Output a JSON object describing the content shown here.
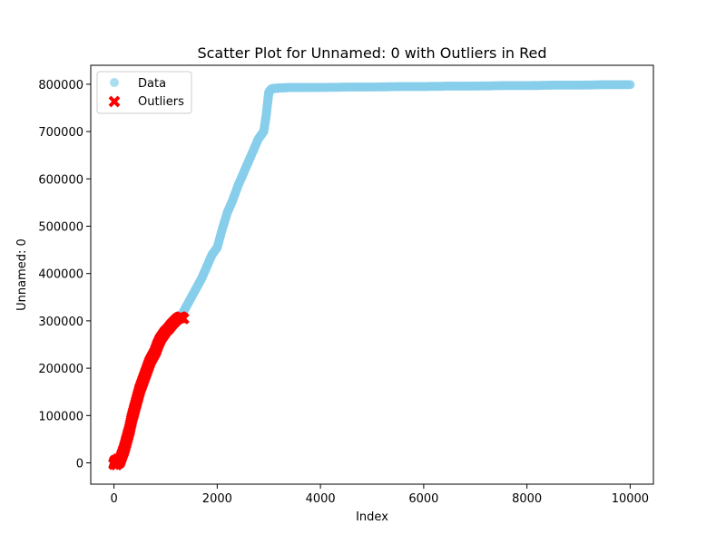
{
  "chart_data": {
    "type": "scatter",
    "title": "Scatter Plot for Unnamed: 0 with Outliers in Red",
    "xlabel": "Index",
    "ylabel": "Unnamed: 0",
    "xlim": [
      -450,
      10450
    ],
    "ylim": [
      -45000,
      840000
    ],
    "xticks": [
      0,
      2000,
      4000,
      6000,
      8000,
      10000
    ],
    "xtick_labels": [
      "0",
      "2000",
      "4000",
      "6000",
      "8000",
      "10000"
    ],
    "yticks": [
      0,
      100000,
      200000,
      300000,
      400000,
      500000,
      600000,
      700000,
      800000
    ],
    "ytick_labels": [
      "0",
      "100000",
      "200000",
      "300000",
      "400000",
      "500000",
      "600000",
      "700000",
      "800000"
    ],
    "grid": false,
    "legend_position": "upper-left",
    "series": [
      {
        "name": "Data",
        "marker": "circle",
        "color": "#87CEEB",
        "x": [
          1300,
          1400,
          1500,
          1600,
          1700,
          1800,
          1900,
          2000,
          2100,
          2200,
          2300,
          2400,
          2500,
          2600,
          2700,
          2800,
          2900,
          2950,
          2980,
          3000,
          3050,
          3100,
          3200,
          3400,
          3600,
          4000,
          4500,
          5000,
          5500,
          6000,
          6500,
          7000,
          7500,
          8000,
          8500,
          9000,
          9500,
          10000
        ],
        "y": [
          310000,
          330000,
          350000,
          370000,
          390000,
          415000,
          440000,
          455000,
          495000,
          530000,
          555000,
          585000,
          610000,
          635000,
          660000,
          685000,
          700000,
          735000,
          765000,
          783000,
          790000,
          791000,
          792000,
          793000,
          793000,
          793000,
          794000,
          794000,
          795000,
          795000,
          796000,
          796000,
          797000,
          797000,
          798000,
          798000,
          799000,
          799000
        ]
      },
      {
        "name": "Outliers",
        "marker": "x",
        "color": "#FF0000",
        "x": [
          0,
          25,
          50,
          75,
          100,
          150,
          200,
          250,
          300,
          350,
          400,
          450,
          500,
          550,
          600,
          650,
          700,
          750,
          800,
          850,
          900,
          950,
          1000,
          1050,
          1100,
          1150,
          1200,
          1250,
          1300,
          1350
        ],
        "y": [
          -3000,
          5000,
          -4000,
          8000,
          0,
          15000,
          30000,
          50000,
          70000,
          95000,
          115000,
          135000,
          155000,
          170000,
          185000,
          200000,
          215000,
          225000,
          235000,
          250000,
          262000,
          270000,
          278000,
          283000,
          290000,
          296000,
          302000,
          306000,
          308000,
          305000
        ]
      }
    ]
  }
}
